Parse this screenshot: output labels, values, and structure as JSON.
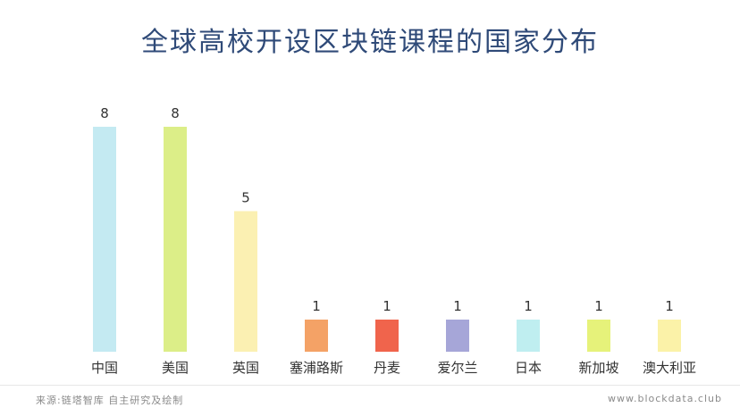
{
  "chart_data": {
    "type": "bar",
    "title": "全球高校开设区块链课程的国家分布",
    "categories": [
      "中国",
      "美国",
      "英国",
      "塞浦路斯",
      "丹麦",
      "爱尔兰",
      "日本",
      "新加坡",
      "澳大利亚"
    ],
    "values": [
      8,
      8,
      5,
      1,
      1,
      1,
      1,
      1,
      1
    ],
    "colors": [
      "#c4eaf2",
      "#dcee88",
      "#fbf0b2",
      "#f4a266",
      "#f0644c",
      "#a6a6d8",
      "#bfeef0",
      "#e6f27a",
      "#fbf2a8"
    ],
    "ylim": [
      0,
      8
    ],
    "grid": false,
    "legend": false
  },
  "footer": {
    "source": "来源:链塔智库 自主研究及绘制",
    "watermark": "www.blockdata.club"
  }
}
